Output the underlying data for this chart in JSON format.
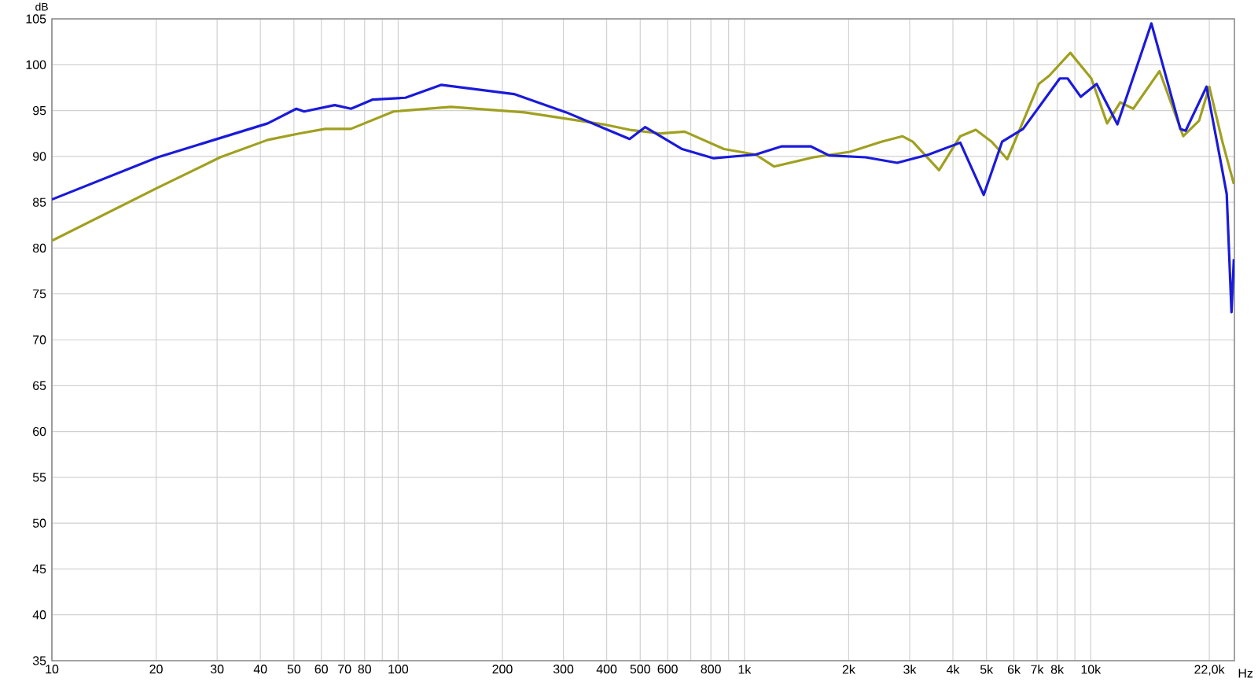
{
  "chart_data": {
    "type": "line",
    "xlabel": "Hz",
    "ylabel": "dB",
    "log": "x",
    "grid": true,
    "marker": "none",
    "line_style": "solid",
    "xlim": [
      10,
      26000
    ],
    "ylim": [
      35,
      105
    ],
    "xticks": [
      10,
      20,
      30,
      40,
      50,
      60,
      70,
      80,
      {
        "value": 90,
        "label": null
      },
      100,
      200,
      300,
      400,
      500,
      600,
      {
        "value": 700,
        "label": null
      },
      800,
      {
        "value": 900,
        "label": null
      },
      {
        "value": 1000,
        "label": "1k"
      },
      {
        "value": 2000,
        "label": "2k"
      },
      {
        "value": 3000,
        "label": "3k"
      },
      {
        "value": 4000,
        "label": "4k"
      },
      {
        "value": 5000,
        "label": "5k"
      },
      {
        "value": 6000,
        "label": "6k"
      },
      {
        "value": 7000,
        "label": "7k"
      },
      {
        "value": 8000,
        "label": "8k"
      },
      {
        "value": 9000,
        "label": null
      },
      {
        "value": 10000,
        "label": "10k"
      },
      {
        "value": 22000,
        "label": "22,0k"
      }
    ],
    "yticks": [
      35,
      40,
      45,
      50,
      55,
      60,
      65,
      70,
      75,
      80,
      85,
      90,
      95,
      100,
      105
    ],
    "series": [
      {
        "color": "#a0a020",
        "x": [
          10,
          20,
          30.6,
          42,
          51.8,
          61.5,
          73,
          97,
          142,
          232,
          391,
          466,
          574,
          672,
          873,
          1077,
          1217,
          1581,
          2018,
          2485,
          2857,
          3062,
          3648,
          4200,
          4656,
          5176,
          5741,
          7079,
          7590,
          8730,
          10040,
          11150,
          12170,
          13270,
          15800,
          18500,
          20560,
          22000,
          24000,
          25900
        ],
        "values": [
          80.8,
          86.5,
          89.9,
          91.8,
          92.5,
          93.0,
          93.0,
          94.9,
          95.4,
          94.8,
          93.5,
          92.9,
          92.5,
          92.7,
          90.8,
          90.2,
          88.9,
          89.9,
          90.5,
          91.6,
          92.2,
          91.6,
          88.5,
          92.2,
          92.9,
          91.6,
          89.7,
          97.9,
          98.8,
          101.3,
          98.5,
          93.6,
          95.9,
          95.2,
          99.3,
          92.2,
          93.9,
          97.6,
          91.6,
          87.0
        ]
      },
      {
        "color": "#1a1adb",
        "x": [
          10,
          20.2,
          42,
          50.8,
          53.5,
          65.6,
          73.1,
          84.5,
          105,
          133,
          216,
          306,
          466,
          517,
          661,
          815,
          1077,
          1282,
          1553,
          1755,
          2239,
          2761,
          3404,
          4200,
          4909,
          5547,
          6378,
          8140,
          8577,
          9360,
          10400,
          11940,
          14970,
          18150,
          18800,
          21600,
          23600,
          24700,
          25500,
          25900
        ],
        "values": [
          85.3,
          89.9,
          93.6,
          95.2,
          94.9,
          95.6,
          95.2,
          96.2,
          96.4,
          97.8,
          96.8,
          94.8,
          91.9,
          93.2,
          90.8,
          89.8,
          90.2,
          91.1,
          91.1,
          90.1,
          89.9,
          89.3,
          90.2,
          91.5,
          85.8,
          91.6,
          93.0,
          98.5,
          98.5,
          96.5,
          97.9,
          93.5,
          104.5,
          93.0,
          92.8,
          97.6,
          89.9,
          85.9,
          73.0,
          78.8
        ]
      }
    ]
  }
}
